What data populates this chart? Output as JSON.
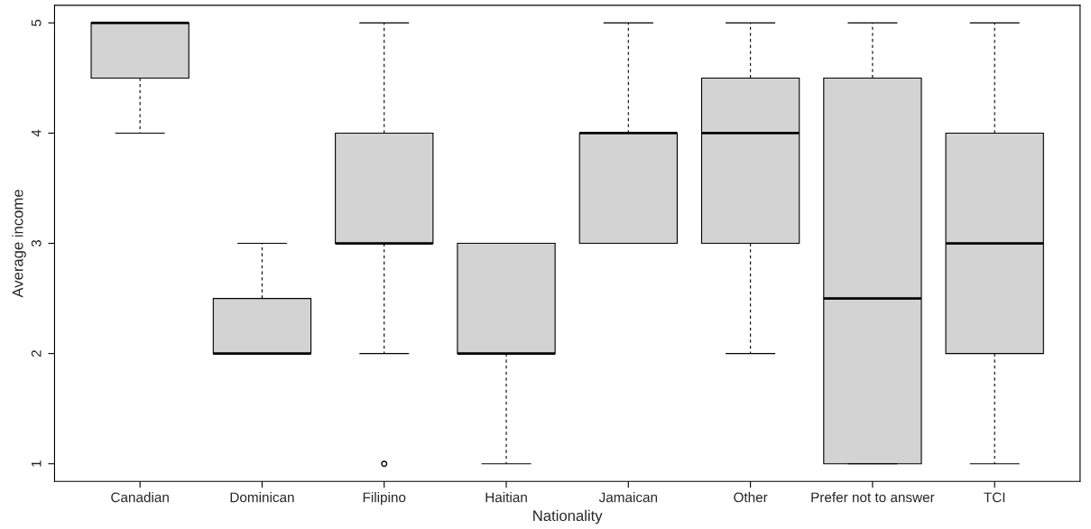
{
  "chart_data": {
    "type": "box",
    "xlabel": "Nationality",
    "ylabel": "Average income",
    "categories": [
      "Canadian",
      "Dominican",
      "Filipino",
      "Haitian",
      "Jamaican",
      "Other",
      "Prefer not to answer",
      "TCI"
    ],
    "boxes": [
      {
        "low": 4,
        "q1": 4.5,
        "median": 5,
        "q3": 5,
        "high": 5
      },
      {
        "low": 2,
        "q1": 2,
        "median": 2,
        "q3": 2.5,
        "high": 3
      },
      {
        "low": 2,
        "q1": 3,
        "median": 3,
        "q3": 4,
        "high": 5,
        "outliers": [
          1
        ]
      },
      {
        "low": 1,
        "q1": 2,
        "median": 2,
        "q3": 3,
        "high": 3
      },
      {
        "low": 3,
        "q1": 3,
        "median": 4,
        "q3": 4,
        "high": 5
      },
      {
        "low": 2,
        "q1": 3,
        "median": 4,
        "q3": 4.5,
        "high": 5
      },
      {
        "low": 1,
        "q1": 1,
        "median": 2.5,
        "q3": 4.5,
        "high": 5
      },
      {
        "low": 1,
        "q1": 2,
        "median": 3,
        "q3": 4,
        "high": 5
      }
    ],
    "color": "#d3d3d3",
    "ylim": [
      0.84,
      5.16
    ],
    "yticks": [
      1,
      2,
      3,
      4,
      5
    ],
    "grid": false
  }
}
